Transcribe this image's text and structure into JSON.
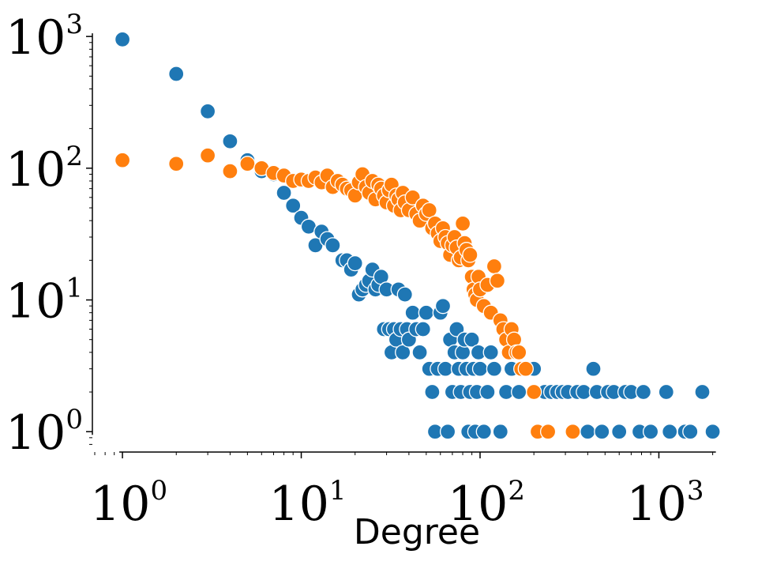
{
  "chart_data": {
    "type": "scatter",
    "xlabel": "Degree",
    "ylabel": "",
    "xscale": "log",
    "yscale": "log",
    "xlim": [
      0.7,
      2200
    ],
    "ylim": [
      0.72,
      1250
    ],
    "grid": false,
    "legend": "none",
    "x_tick_labels": [
      {
        "value": 1,
        "base": "10",
        "exp": "0"
      },
      {
        "value": 10,
        "base": "10",
        "exp": "1"
      },
      {
        "value": 100,
        "base": "10",
        "exp": "2"
      },
      {
        "value": 1000,
        "base": "10",
        "exp": "3"
      }
    ],
    "y_tick_labels": [
      {
        "value": 1,
        "base": "10",
        "exp": "0"
      },
      {
        "value": 10,
        "base": "10",
        "exp": "1"
      },
      {
        "value": 100,
        "base": "10",
        "exp": "2"
      },
      {
        "value": 1000,
        "base": "10",
        "exp": "3"
      }
    ],
    "series": [
      {
        "color": "#1f77b4",
        "points": [
          [
            1,
            950
          ],
          [
            2,
            520
          ],
          [
            3,
            270
          ],
          [
            4,
            160
          ],
          [
            5,
            115
          ],
          [
            6,
            95
          ],
          [
            7,
            90
          ],
          [
            8,
            65
          ],
          [
            9,
            52
          ],
          [
            10,
            42
          ],
          [
            11,
            36
          ],
          [
            12,
            26
          ],
          [
            13,
            33
          ],
          [
            14,
            29
          ],
          [
            15,
            26
          ],
          [
            17,
            20
          ],
          [
            18,
            20
          ],
          [
            19,
            17
          ],
          [
            20,
            19
          ],
          [
            21,
            11
          ],
          [
            22,
            12
          ],
          [
            23,
            13
          ],
          [
            24,
            14
          ],
          [
            25,
            17
          ],
          [
            26,
            12
          ],
          [
            27,
            13
          ],
          [
            28,
            15
          ],
          [
            29,
            6
          ],
          [
            30,
            12
          ],
          [
            31,
            6
          ],
          [
            32,
            4
          ],
          [
            33,
            6
          ],
          [
            34,
            5
          ],
          [
            35,
            12
          ],
          [
            36,
            6
          ],
          [
            37,
            4
          ],
          [
            38,
            11
          ],
          [
            39,
            6
          ],
          [
            40,
            5
          ],
          [
            42,
            8
          ],
          [
            44,
            6
          ],
          [
            46,
            4
          ],
          [
            48,
            6
          ],
          [
            50,
            8
          ],
          [
            52,
            3
          ],
          [
            54,
            2
          ],
          [
            56,
            1
          ],
          [
            58,
            3
          ],
          [
            60,
            8
          ],
          [
            62,
            9
          ],
          [
            64,
            3
          ],
          [
            66,
            1
          ],
          [
            68,
            5
          ],
          [
            70,
            2
          ],
          [
            72,
            4
          ],
          [
            74,
            6
          ],
          [
            76,
            3
          ],
          [
            78,
            2
          ],
          [
            80,
            4
          ],
          [
            82,
            5
          ],
          [
            84,
            3
          ],
          [
            86,
            1
          ],
          [
            88,
            2
          ],
          [
            90,
            5
          ],
          [
            92,
            3
          ],
          [
            94,
            1
          ],
          [
            96,
            2
          ],
          [
            98,
            4
          ],
          [
            100,
            3
          ],
          [
            105,
            1
          ],
          [
            110,
            2
          ],
          [
            115,
            4
          ],
          [
            120,
            3
          ],
          [
            130,
            1
          ],
          [
            140,
            2
          ],
          [
            150,
            3
          ],
          [
            165,
            2
          ],
          [
            185,
            3
          ],
          [
            200,
            3
          ],
          [
            210,
            1
          ],
          [
            230,
            2
          ],
          [
            250,
            2
          ],
          [
            270,
            2
          ],
          [
            290,
            2
          ],
          [
            310,
            2
          ],
          [
            330,
            1
          ],
          [
            350,
            2
          ],
          [
            380,
            2
          ],
          [
            400,
            1
          ],
          [
            430,
            3
          ],
          [
            450,
            2
          ],
          [
            480,
            1
          ],
          [
            520,
            2
          ],
          [
            560,
            2
          ],
          [
            600,
            1
          ],
          [
            650,
            2
          ],
          [
            700,
            2
          ],
          [
            780,
            1
          ],
          [
            820,
            2
          ],
          [
            900,
            1
          ],
          [
            1100,
            2
          ],
          [
            1150,
            1
          ],
          [
            1400,
            1
          ],
          [
            1500,
            1
          ],
          [
            1750,
            2
          ],
          [
            2000,
            1
          ]
        ]
      },
      {
        "color": "#ff7f0e",
        "points": [
          [
            1,
            115
          ],
          [
            2,
            108
          ],
          [
            3,
            125
          ],
          [
            4,
            95
          ],
          [
            5,
            108
          ],
          [
            6,
            100
          ],
          [
            7,
            92
          ],
          [
            8,
            88
          ],
          [
            9,
            80
          ],
          [
            10,
            82
          ],
          [
            11,
            80
          ],
          [
            12,
            85
          ],
          [
            13,
            78
          ],
          [
            14,
            88
          ],
          [
            15,
            72
          ],
          [
            16,
            80
          ],
          [
            17,
            75
          ],
          [
            18,
            70
          ],
          [
            19,
            68
          ],
          [
            20,
            62
          ],
          [
            21,
            78
          ],
          [
            22,
            90
          ],
          [
            23,
            72
          ],
          [
            24,
            65
          ],
          [
            25,
            80
          ],
          [
            26,
            58
          ],
          [
            27,
            75
          ],
          [
            28,
            70
          ],
          [
            29,
            62
          ],
          [
            30,
            55
          ],
          [
            31,
            68
          ],
          [
            32,
            75
          ],
          [
            33,
            52
          ],
          [
            34,
            62
          ],
          [
            35,
            58
          ],
          [
            36,
            48
          ],
          [
            37,
            65
          ],
          [
            38,
            55
          ],
          [
            40,
            48
          ],
          [
            42,
            60
          ],
          [
            44,
            45
          ],
          [
            46,
            40
          ],
          [
            48,
            52
          ],
          [
            50,
            45
          ],
          [
            52,
            48
          ],
          [
            54,
            35
          ],
          [
            56,
            38
          ],
          [
            58,
            32
          ],
          [
            60,
            28
          ],
          [
            62,
            35
          ],
          [
            64,
            30
          ],
          [
            66,
            27
          ],
          [
            68,
            22
          ],
          [
            70,
            26
          ],
          [
            72,
            30
          ],
          [
            74,
            25
          ],
          [
            76,
            20
          ],
          [
            78,
            21
          ],
          [
            80,
            38
          ],
          [
            82,
            27
          ],
          [
            84,
            24
          ],
          [
            86,
            20
          ],
          [
            88,
            22
          ],
          [
            90,
            15
          ],
          [
            92,
            12
          ],
          [
            94,
            11
          ],
          [
            96,
            10
          ],
          [
            98,
            15
          ],
          [
            100,
            12
          ],
          [
            105,
            9
          ],
          [
            110,
            13
          ],
          [
            115,
            8
          ],
          [
            120,
            18
          ],
          [
            125,
            14
          ],
          [
            130,
            7
          ],
          [
            135,
            6
          ],
          [
            140,
            5
          ],
          [
            145,
            4
          ],
          [
            150,
            6
          ],
          [
            155,
            5
          ],
          [
            160,
            4
          ],
          [
            165,
            4
          ],
          [
            170,
            3
          ],
          [
            180,
            3
          ],
          [
            200,
            2
          ],
          [
            210,
            1
          ],
          [
            240,
            1
          ],
          [
            330,
            1
          ]
        ]
      }
    ]
  }
}
